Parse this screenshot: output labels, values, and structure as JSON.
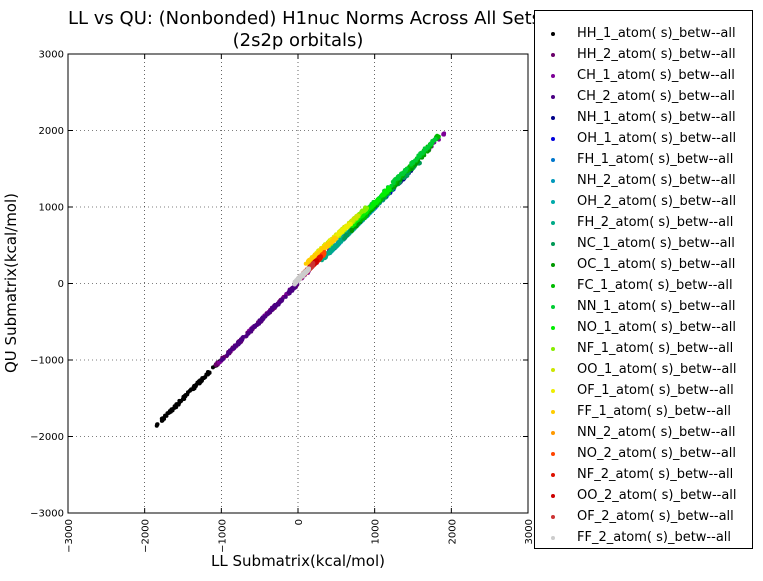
{
  "chart_data": {
    "type": "scatter",
    "title_lines": [
      "LL vs QU: (Nonbonded) H1nuc Norms Across All Sets",
      "(2s2p orbitals)"
    ],
    "xlabel": "LL Submatrix(kcal/mol)",
    "ylabel": "QU Submatrix(kcal/mol)",
    "xlim": [
      -3000,
      3000
    ],
    "ylim": [
      -3000,
      3000
    ],
    "xticks": [
      "−3000",
      "−2000",
      "−1000",
      "0",
      "1000",
      "2000",
      "3000"
    ],
    "yticks": [
      "−3000",
      "−2000",
      "−1000",
      "0",
      "1000",
      "2000",
      "3000"
    ],
    "grid": true,
    "legend_position": "outside-right",
    "series": [
      {
        "name": "HH_1_atom( s)_betw--all",
        "color": "#000000",
        "x_range": [
          -1850,
          -1000
        ],
        "y_range": [
          -1860,
          -1000
        ]
      },
      {
        "name": "HH_2_atom( s)_betw--all",
        "color": "#6a006a",
        "x_range": [
          -1100,
          0
        ],
        "y_range": [
          -1100,
          0
        ]
      },
      {
        "name": "CH_1_atom( s)_betw--all",
        "color": "#7d0096",
        "x_range": [
          -1050,
          2020
        ],
        "y_range": [
          -1050,
          2080
        ]
      },
      {
        "name": "CH_2_atom( s)_betw--all",
        "color": "#4b0082",
        "x_range": [
          -1000,
          0
        ],
        "y_range": [
          -1000,
          0
        ]
      },
      {
        "name": "NH_1_atom( s)_betw--all",
        "color": "#000088",
        "x_range": [
          400,
          1500
        ],
        "y_range": [
          400,
          1500
        ]
      },
      {
        "name": "OH_1_atom( s)_betw--all",
        "color": "#0000dd",
        "x_range": [
          400,
          1300
        ],
        "y_range": [
          400,
          1300
        ]
      },
      {
        "name": "FH_1_atom( s)_betw--all",
        "color": "#0077cc",
        "x_range": [
          400,
          1200
        ],
        "y_range": [
          400,
          1200
        ]
      },
      {
        "name": "NH_2_atom( s)_betw--all",
        "color": "#0099bb",
        "x_range": [
          350,
          1100
        ],
        "y_range": [
          350,
          1100
        ]
      },
      {
        "name": "OH_2_atom( s)_betw--all",
        "color": "#00aaaa",
        "x_range": [
          350,
          1000
        ],
        "y_range": [
          350,
          1000
        ]
      },
      {
        "name": "FH_2_atom( s)_betw--all",
        "color": "#00aa88",
        "x_range": [
          300,
          900
        ],
        "y_range": [
          300,
          900
        ]
      },
      {
        "name": "NC_1_atom( s)_betw--all",
        "color": "#009955",
        "x_range": [
          600,
          1600
        ],
        "y_range": [
          600,
          1600
        ]
      },
      {
        "name": "OC_1_atom( s)_betw--all",
        "color": "#009900",
        "x_range": [
          700,
          1750
        ],
        "y_range": [
          700,
          1800
        ]
      },
      {
        "name": "FC_1_atom( s)_betw--all",
        "color": "#00bb00",
        "x_range": [
          800,
          1850
        ],
        "y_range": [
          800,
          1950
        ]
      },
      {
        "name": "NN_1_atom( s)_betw--all",
        "color": "#00cc33",
        "x_range": [
          700,
          1800
        ],
        "y_range": [
          750,
          1900
        ]
      },
      {
        "name": "NO_1_atom( s)_betw--all",
        "color": "#00ee00",
        "x_range": [
          700,
          1200
        ],
        "y_range": [
          750,
          1250
        ]
      },
      {
        "name": "NF_1_atom( s)_betw--all",
        "color": "#88ee00",
        "x_range": [
          400,
          900
        ],
        "y_range": [
          500,
          1000
        ]
      },
      {
        "name": "OO_1_atom( s)_betw--all",
        "color": "#cce600",
        "x_range": [
          250,
          800
        ],
        "y_range": [
          400,
          900
        ]
      },
      {
        "name": "OF_1_atom( s)_betw--all",
        "color": "#eeee00",
        "x_range": [
          150,
          700
        ],
        "y_range": [
          300,
          800
        ]
      },
      {
        "name": "FF_1_atom( s)_betw--all",
        "color": "#ffcc00",
        "x_range": [
          100,
          500
        ],
        "y_range": [
          250,
          600
        ]
      },
      {
        "name": "NN_2_atom( s)_betw--all",
        "color": "#ff9900",
        "x_range": [
          100,
          300
        ],
        "y_range": [
          150,
          350
        ]
      },
      {
        "name": "NO_2_atom( s)_betw--all",
        "color": "#ff4400",
        "x_range": [
          100,
          350
        ],
        "y_range": [
          150,
          400
        ]
      },
      {
        "name": "NF_2_atom( s)_betw--all",
        "color": "#dd1100",
        "x_range": [
          100,
          300
        ],
        "y_range": [
          150,
          350
        ]
      },
      {
        "name": "OO_2_atom( s)_betw--all",
        "color": "#cc0000",
        "x_range": [
          50,
          250
        ],
        "y_range": [
          100,
          300
        ]
      },
      {
        "name": "OF_2_atom( s)_betw--all",
        "color": "#cc3333",
        "x_range": [
          0,
          200
        ],
        "y_range": [
          50,
          250
        ]
      },
      {
        "name": "FF_2_atom( s)_betw--all",
        "color": "#cccccc",
        "x_range": [
          -50,
          150
        ],
        "y_range": [
          0,
          200
        ]
      }
    ]
  }
}
